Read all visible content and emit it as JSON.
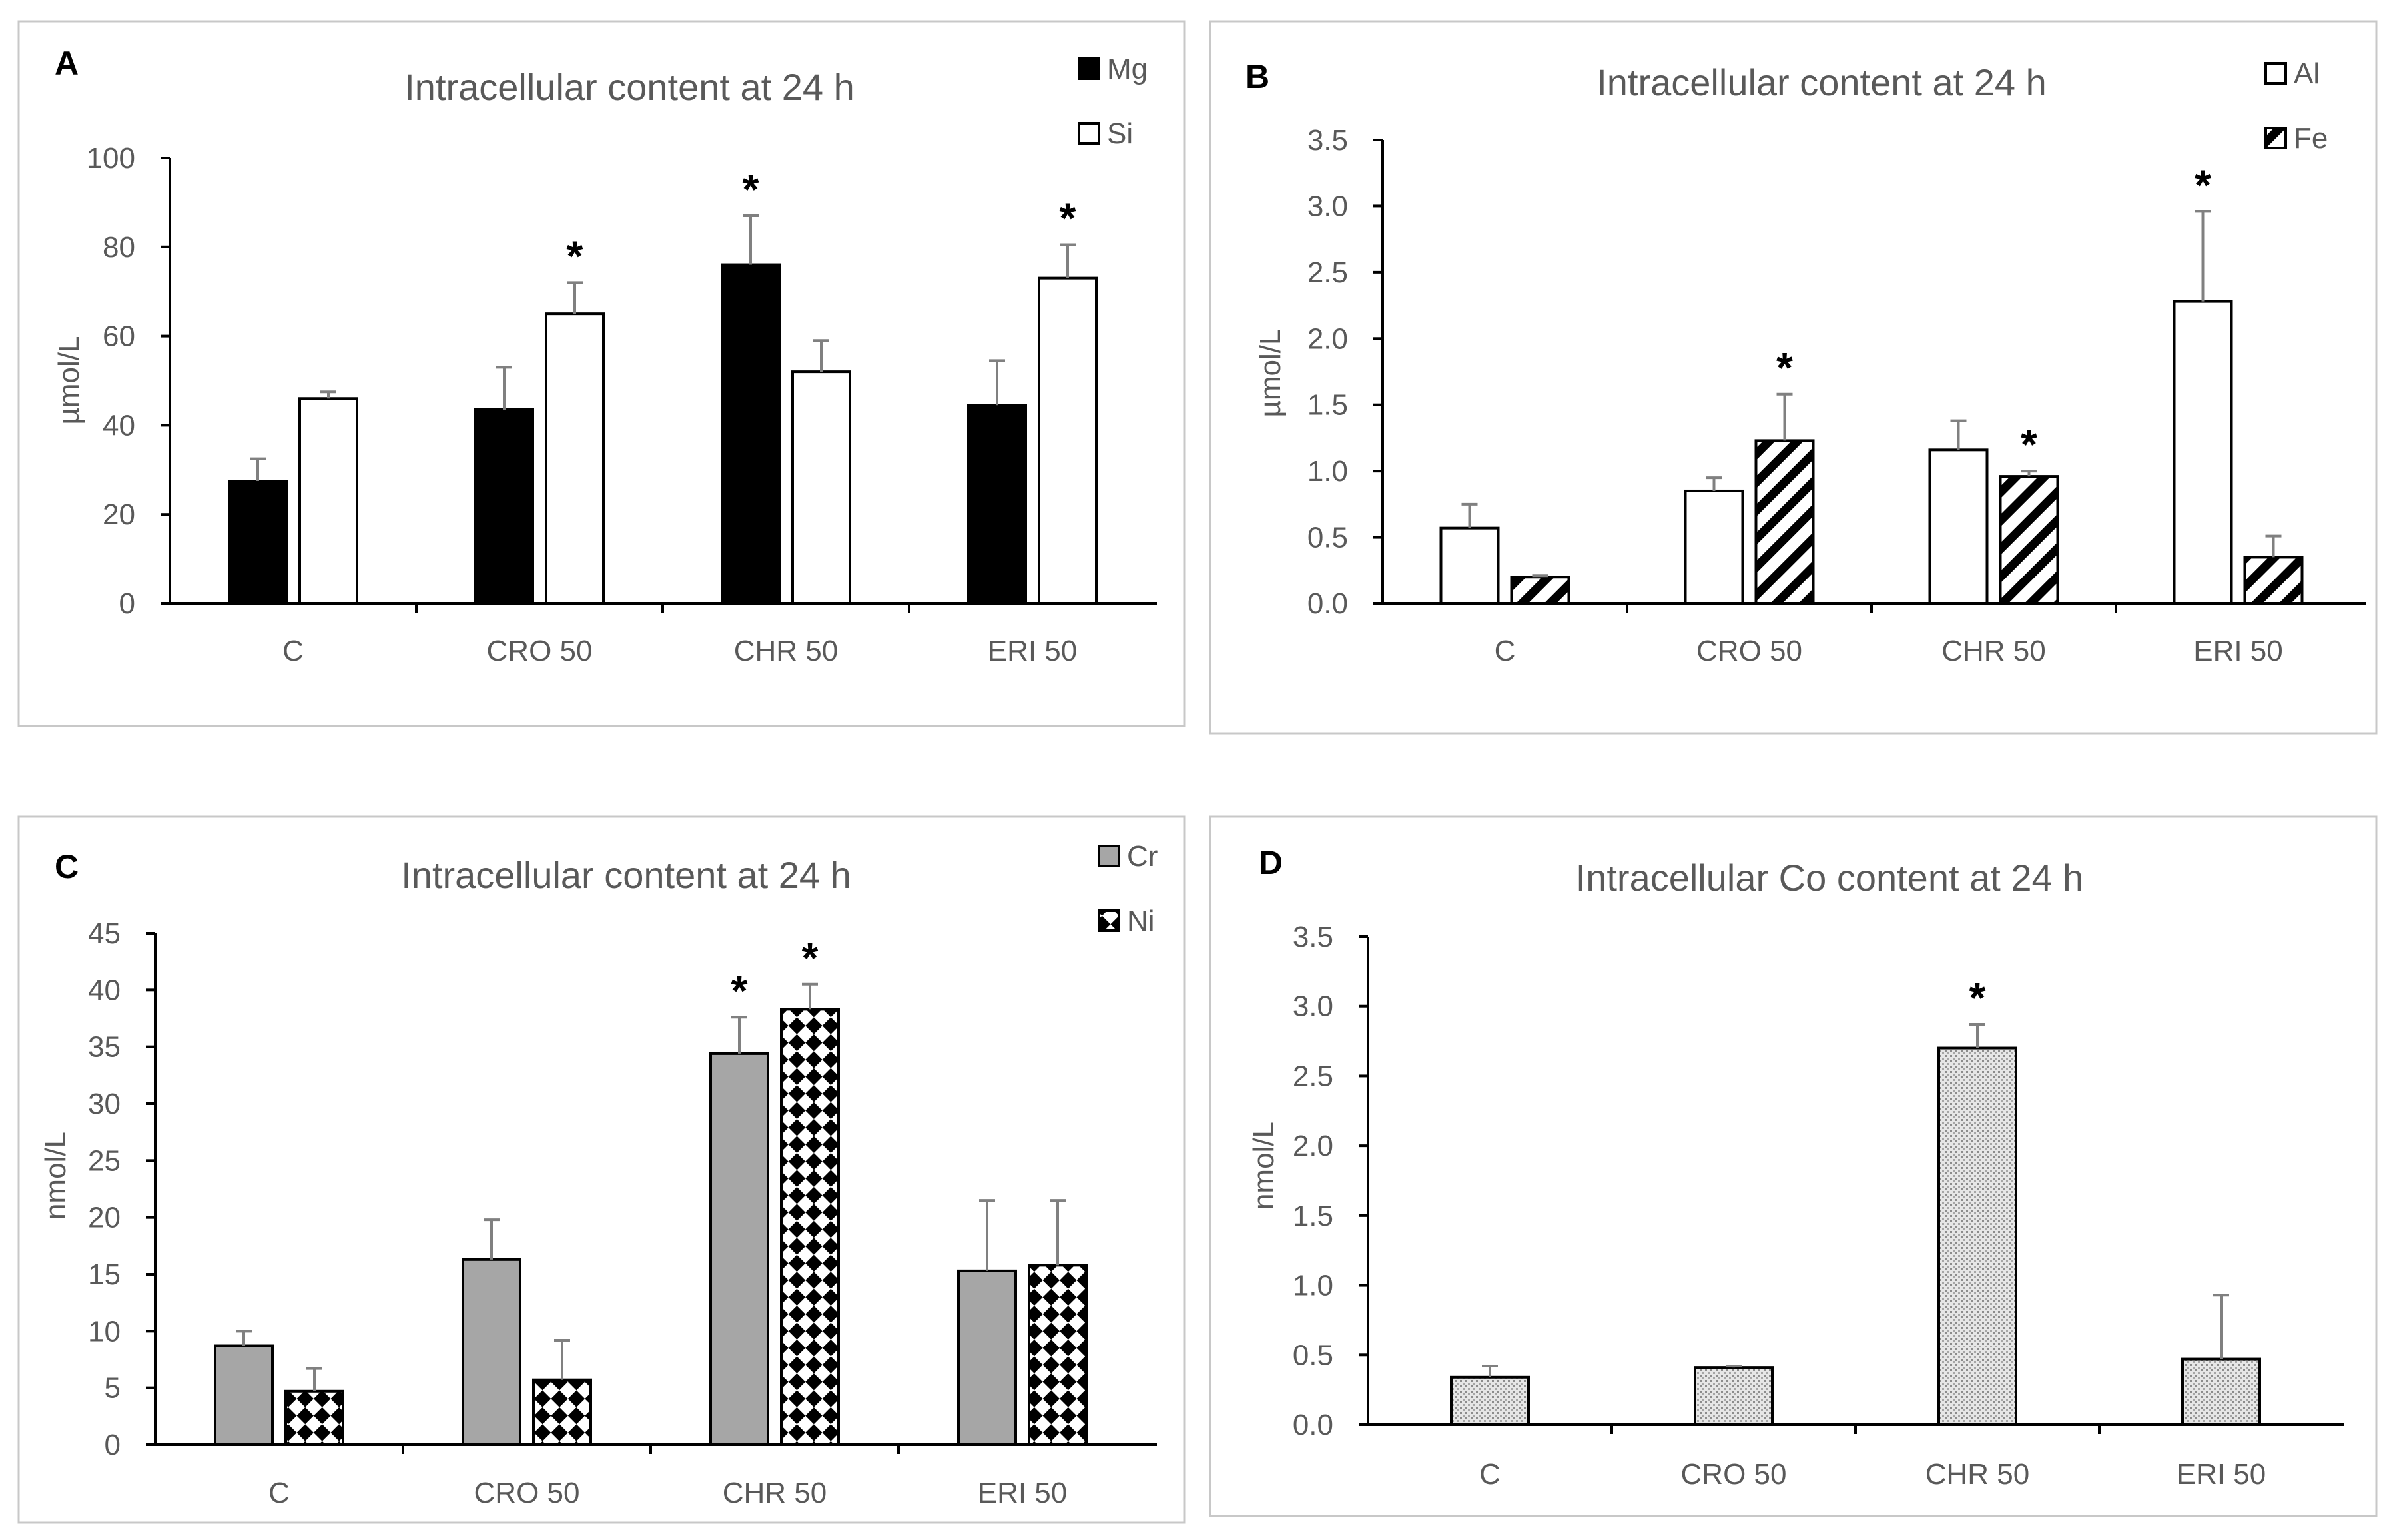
{
  "chart_data": [
    {
      "panel": "A",
      "type": "bar",
      "title": "Intracellular content at 24 h",
      "ylabel": "µmol/L",
      "ylim": [
        0,
        100
      ],
      "yticks": [
        0,
        20,
        40,
        60,
        80,
        100
      ],
      "ytick_labels": [
        "0",
        "20",
        "40",
        "60",
        "80",
        "100"
      ],
      "categories": [
        "C",
        "CRO 50",
        "CHR 50",
        "ERI 50"
      ],
      "legend_position": "top-right",
      "series": [
        {
          "name": "Mg",
          "pattern": "solid",
          "values": [
            27.5,
            43.5,
            76,
            44.5
          ],
          "errors": [
            5,
            9.5,
            11,
            10
          ],
          "significant": [
            false,
            false,
            true,
            false
          ]
        },
        {
          "name": "Si",
          "pattern": "white",
          "values": [
            46,
            65,
            52,
            73
          ],
          "errors": [
            1.5,
            7,
            7,
            7.5
          ],
          "significant": [
            false,
            true,
            false,
            true
          ]
        }
      ],
      "significance_marker": "*"
    },
    {
      "panel": "B",
      "type": "bar",
      "title": "Intracellular content at 24 h",
      "ylabel": "µmol/L",
      "ylim": [
        0,
        3.5
      ],
      "yticks": [
        0,
        0.5,
        1,
        1.5,
        2,
        2.5,
        3,
        3.5
      ],
      "ytick_labels": [
        "0.0",
        "0.5",
        "1.0",
        "1.5",
        "2.0",
        "2.5",
        "3.0",
        "3.5"
      ],
      "categories": [
        "C",
        "CRO 50",
        "CHR 50",
        "ERI 50"
      ],
      "legend_position": "top-right",
      "series": [
        {
          "name": "Al",
          "pattern": "white",
          "values": [
            0.57,
            0.85,
            1.16,
            2.28
          ],
          "errors": [
            0.18,
            0.1,
            0.22,
            0.68
          ],
          "significant": [
            false,
            false,
            false,
            true
          ]
        },
        {
          "name": "Fe",
          "pattern": "diagonal",
          "values": [
            0.2,
            1.23,
            0.96,
            0.35
          ],
          "errors": [
            0.01,
            0.35,
            0.04,
            0.16
          ],
          "significant": [
            false,
            true,
            true,
            false
          ]
        }
      ],
      "significance_marker": "*"
    },
    {
      "panel": "C",
      "type": "bar",
      "title": "Intracellular content at 24 h",
      "ylabel": "nmol/L",
      "ylim": [
        0,
        45
      ],
      "yticks": [
        0,
        5,
        10,
        15,
        20,
        25,
        30,
        35,
        40,
        45
      ],
      "ytick_labels": [
        "0",
        "5",
        "10",
        "15",
        "20",
        "25",
        "30",
        "35",
        "40",
        "45"
      ],
      "categories": [
        "C",
        "CRO 50",
        "CHR 50",
        "ERI 50"
      ],
      "legend_position": "top-right",
      "series": [
        {
          "name": "Cr",
          "pattern": "gray",
          "values": [
            8.7,
            16.3,
            34.4,
            15.3
          ],
          "errors": [
            1.3,
            3.5,
            3.2,
            6.2
          ],
          "significant": [
            false,
            false,
            true,
            false
          ]
        },
        {
          "name": "Ni",
          "pattern": "checker",
          "values": [
            4.7,
            5.7,
            38.3,
            15.8
          ],
          "errors": [
            2,
            3.5,
            2.2,
            5.7
          ],
          "significant": [
            false,
            false,
            true,
            false
          ]
        }
      ],
      "significance_marker": "*"
    },
    {
      "panel": "D",
      "type": "bar",
      "title": "Intracellular Co content at 24 h",
      "ylabel": "nmol/L",
      "ylim": [
        0,
        3.5
      ],
      "yticks": [
        0,
        0.5,
        1,
        1.5,
        2,
        2.5,
        3,
        3.5
      ],
      "ytick_labels": [
        "0.0",
        "0.5",
        "1.0",
        "1.5",
        "2.0",
        "2.5",
        "3.0",
        "3.5"
      ],
      "categories": [
        "C",
        "CRO 50",
        "CHR 50",
        "ERI 50"
      ],
      "legend_position": "none",
      "series": [
        {
          "name": "Co",
          "pattern": "dotted",
          "values": [
            0.34,
            0.41,
            2.7,
            0.47
          ],
          "errors": [
            0.08,
            0.01,
            0.17,
            0.46
          ],
          "significant": [
            false,
            false,
            true,
            false
          ]
        }
      ],
      "significance_marker": "*"
    }
  ]
}
